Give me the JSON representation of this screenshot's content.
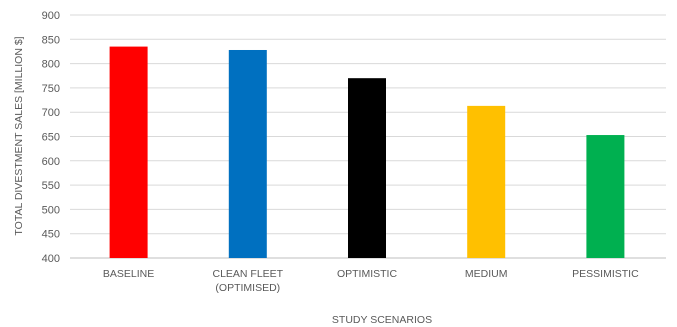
{
  "chart_data": {
    "type": "bar",
    "title": "",
    "xlabel": "STUDY SCENARIOS",
    "ylabel": "TOTAL DIVESTMENT SALES  [MILLION $]",
    "ylim": [
      400,
      900
    ],
    "yticks": [
      400,
      450,
      500,
      550,
      600,
      650,
      700,
      750,
      800,
      850,
      900
    ],
    "grid": true,
    "legend": "none",
    "categories": [
      [
        "BASELINE"
      ],
      [
        "CLEAN FLEET",
        "(OPTIMISED)"
      ],
      [
        "OPTIMISTIC"
      ],
      [
        "MEDIUM"
      ],
      [
        "PESSIMISTIC"
      ]
    ],
    "values": [
      835,
      828,
      770,
      713,
      653
    ],
    "colors": [
      "#ff0000",
      "#0070c0",
      "#000000",
      "#ffc000",
      "#00b050"
    ],
    "gridline_color": "#d9d9d9"
  }
}
